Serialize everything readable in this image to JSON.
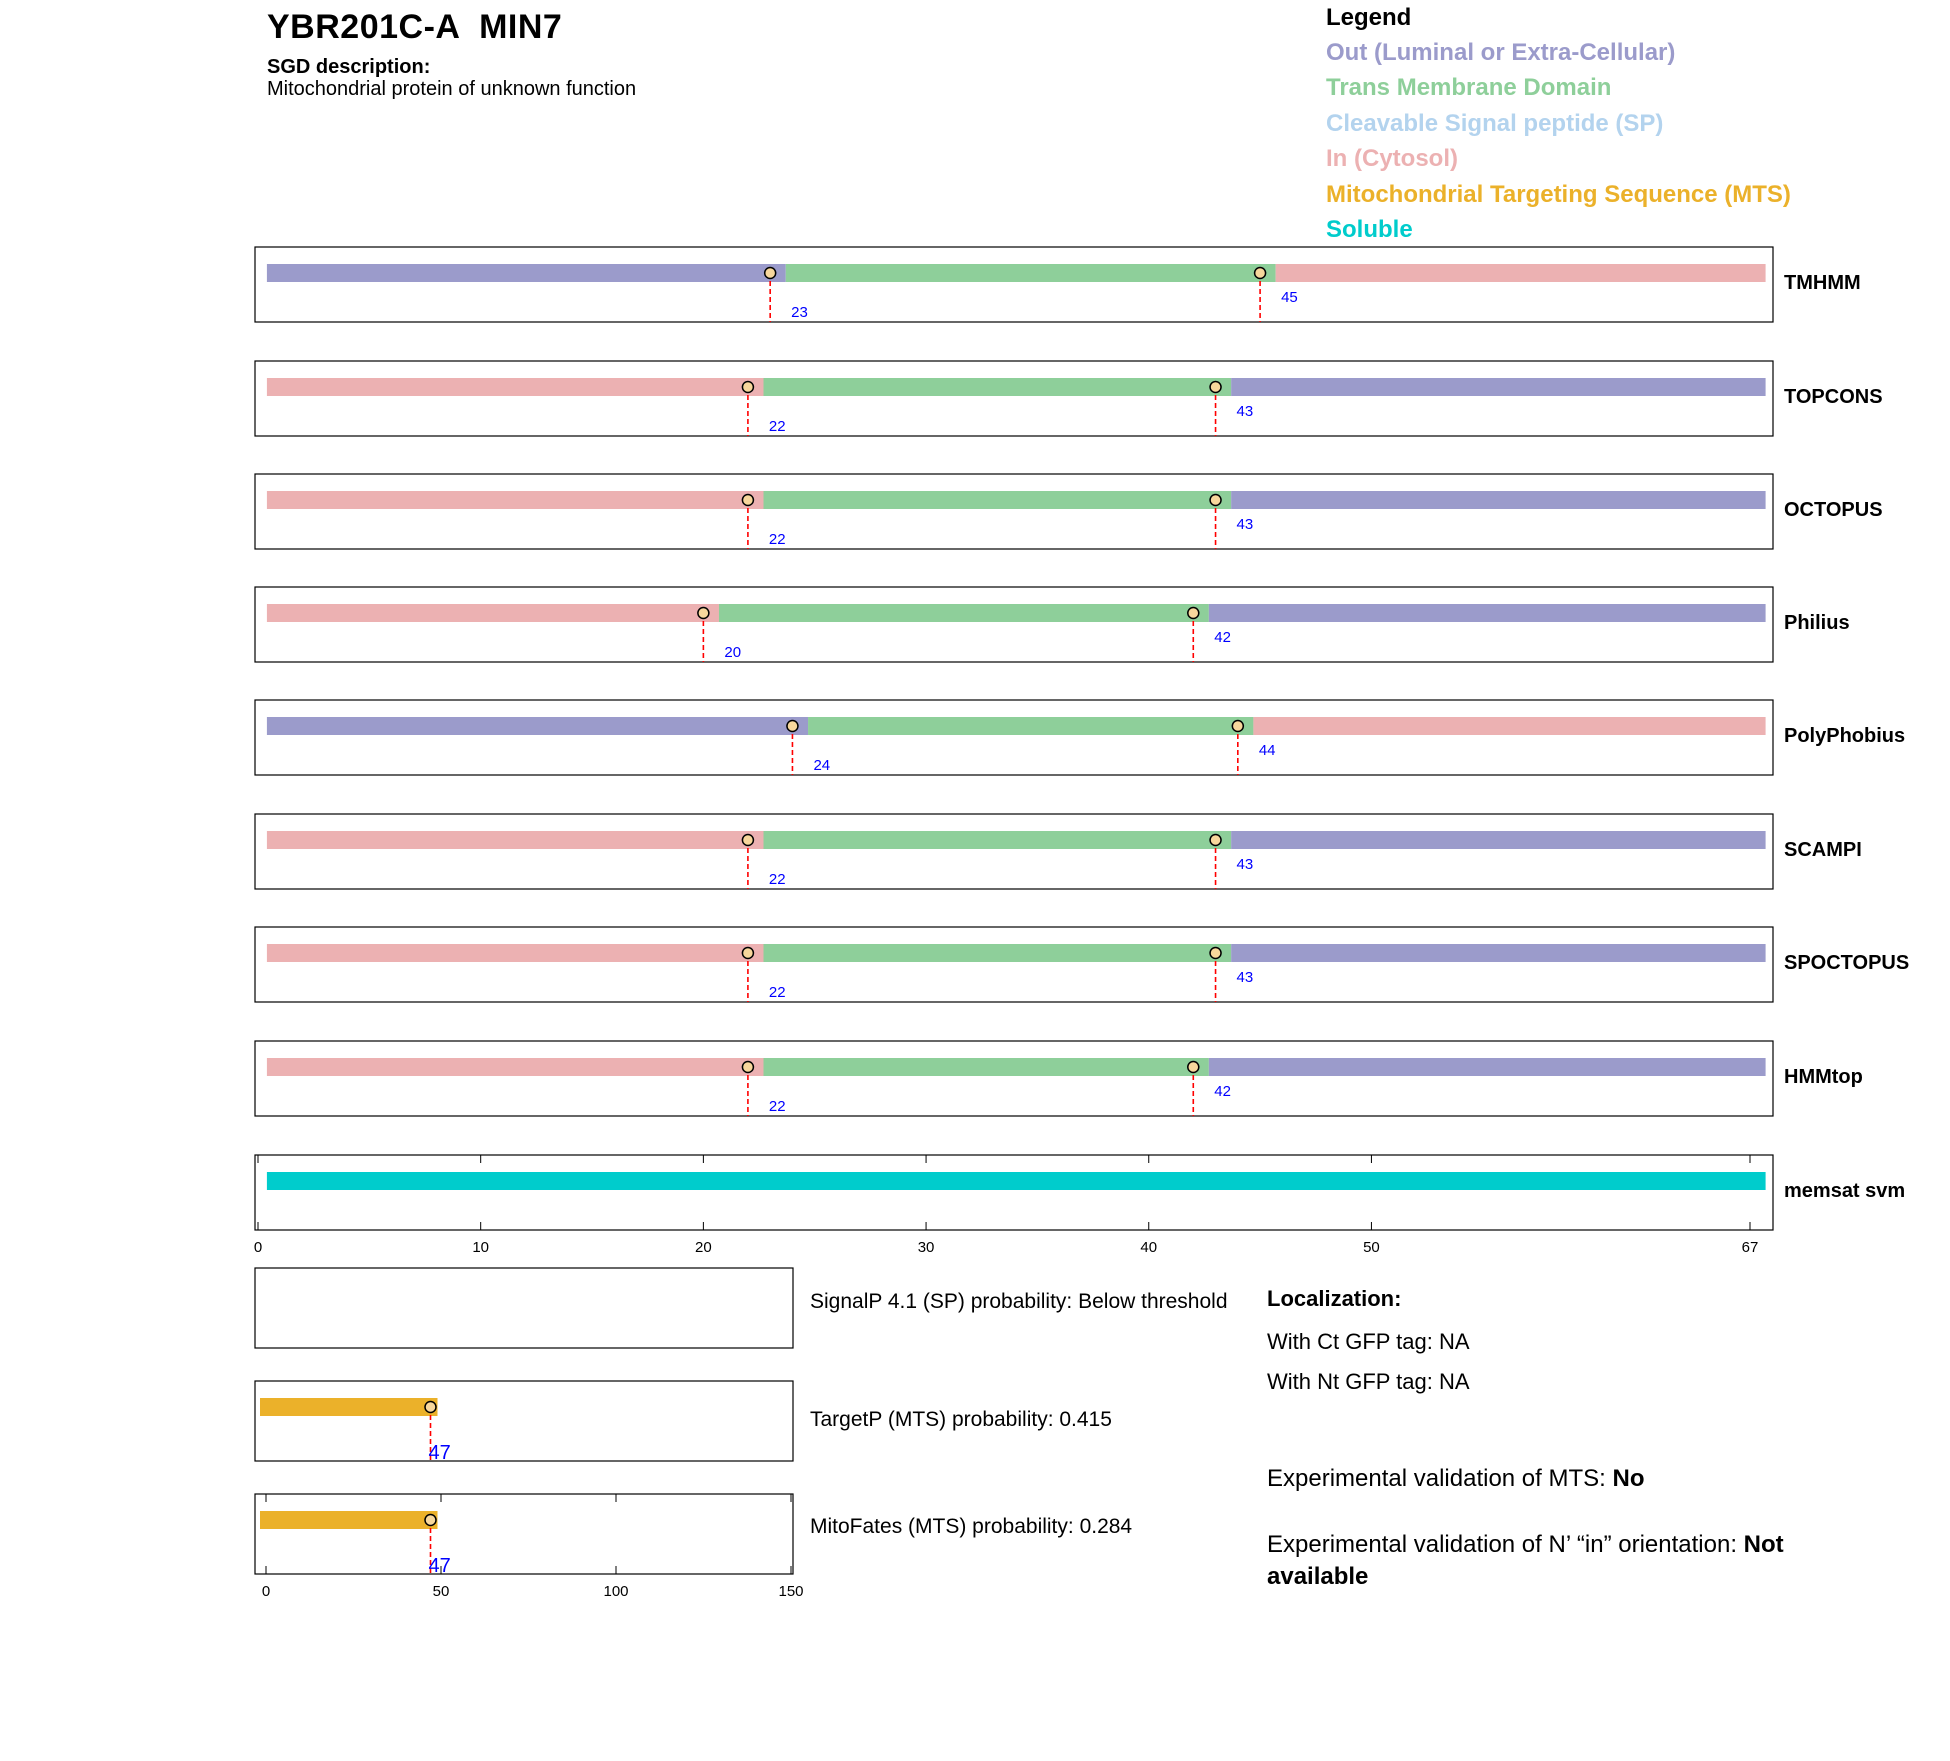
{
  "header": {
    "title": "YBR201C-A  MIN7",
    "sgd_label": "SGD description:",
    "sgd_description": "Mitochondrial protein of unknown function"
  },
  "legend": {
    "title": "Legend",
    "items": [
      {
        "label": "Out (Luminal or Extra-Cellular)",
        "color": "#9b9bcb"
      },
      {
        "label": "Trans Membrane Domain",
        "color": "#8ecf9a"
      },
      {
        "label": "Cleavable Signal peptide (SP)",
        "color": "#b3d3ee"
      },
      {
        "label": "In (Cytosol)",
        "color": "#ecb1b2"
      },
      {
        "label": "Mitochondrial Targeting Sequence (MTS)",
        "color": "#ebb12a"
      },
      {
        "label": "Soluble",
        "color": "#00cccc"
      }
    ]
  },
  "chart_data": [
    {
      "type": "topology-tracks",
      "sequence_length": 67,
      "x_ticks": [
        0,
        10,
        20,
        30,
        40,
        50,
        67
      ],
      "colors": {
        "out": "#9b9bcb",
        "tm": "#8ecf9a",
        "in": "#ecb1b2",
        "soluble": "#00cccc"
      },
      "tracks": [
        {
          "name": "TMHMM",
          "segments": [
            {
              "state": "out",
              "start": 0.4,
              "end": 23.7
            },
            {
              "state": "tm",
              "start": 23.7,
              "end": 45.7
            },
            {
              "state": "in",
              "start": 45.7,
              "end": 67.7
            }
          ],
          "markers": [
            23,
            45
          ]
        },
        {
          "name": "TOPCONS",
          "segments": [
            {
              "state": "in",
              "start": 0.4,
              "end": 22.7
            },
            {
              "state": "tm",
              "start": 22.7,
              "end": 43.7
            },
            {
              "state": "out",
              "start": 43.7,
              "end": 67.7
            }
          ],
          "markers": [
            22,
            43
          ]
        },
        {
          "name": "OCTOPUS",
          "segments": [
            {
              "state": "in",
              "start": 0.4,
              "end": 22.7
            },
            {
              "state": "tm",
              "start": 22.7,
              "end": 43.7
            },
            {
              "state": "out",
              "start": 43.7,
              "end": 67.7
            }
          ],
          "markers": [
            22,
            43
          ]
        },
        {
          "name": "Philius",
          "segments": [
            {
              "state": "in",
              "start": 0.4,
              "end": 20.7
            },
            {
              "state": "tm",
              "start": 20.7,
              "end": 42.7
            },
            {
              "state": "out",
              "start": 42.7,
              "end": 67.7
            }
          ],
          "markers": [
            20,
            42
          ]
        },
        {
          "name": "PolyPhobius",
          "segments": [
            {
              "state": "out",
              "start": 0.4,
              "end": 24.7
            },
            {
              "state": "tm",
              "start": 24.7,
              "end": 44.7
            },
            {
              "state": "in",
              "start": 44.7,
              "end": 67.7
            }
          ],
          "markers": [
            24,
            44
          ]
        },
        {
          "name": "SCAMPI",
          "segments": [
            {
              "state": "in",
              "start": 0.4,
              "end": 22.7
            },
            {
              "state": "tm",
              "start": 22.7,
              "end": 43.7
            },
            {
              "state": "out",
              "start": 43.7,
              "end": 67.7
            }
          ],
          "markers": [
            22,
            43
          ]
        },
        {
          "name": "SPOCTOPUS",
          "segments": [
            {
              "state": "in",
              "start": 0.4,
              "end": 22.7
            },
            {
              "state": "tm",
              "start": 22.7,
              "end": 43.7
            },
            {
              "state": "out",
              "start": 43.7,
              "end": 67.7
            }
          ],
          "markers": [
            22,
            43
          ]
        },
        {
          "name": "HMMtop",
          "segments": [
            {
              "state": "in",
              "start": 0.4,
              "end": 22.7
            },
            {
              "state": "tm",
              "start": 22.7,
              "end": 42.7
            },
            {
              "state": "out",
              "start": 42.7,
              "end": 67.7
            }
          ],
          "markers": [
            22,
            42
          ]
        },
        {
          "name": "memsat svm",
          "segments": [
            {
              "state": "soluble",
              "start": 0.4,
              "end": 67.7
            }
          ],
          "markers": [],
          "axis": true
        }
      ]
    },
    {
      "type": "bar",
      "x_range": [
        0,
        150
      ],
      "x_ticks": [
        0,
        50,
        100,
        150
      ],
      "mts_color": "#ebb12a",
      "panels": [
        {
          "name": "SignalP",
          "label": "SignalP 4.1 (SP) probability: Below threshold",
          "bar_end": null,
          "marker": null
        },
        {
          "name": "TargetP",
          "label": "TargetP (MTS) probability: 0.415",
          "bar_end": 49,
          "marker": 47
        },
        {
          "name": "MitoFates",
          "label": "MitoFates (MTS) probability: 0.284",
          "bar_end": 49,
          "marker": 47,
          "axis": true
        }
      ]
    }
  ],
  "localization": {
    "title": "Localization:",
    "ct_gfp": "With Ct GFP tag: NA",
    "nt_gfp": "With Nt GFP tag: NA",
    "mts_validation_prefix": "Experimental validation of MTS: ",
    "mts_validation_value": "No",
    "orientation_prefix": "Experimental validation of N’ “in” orientation: ",
    "orientation_value": "Not available"
  }
}
